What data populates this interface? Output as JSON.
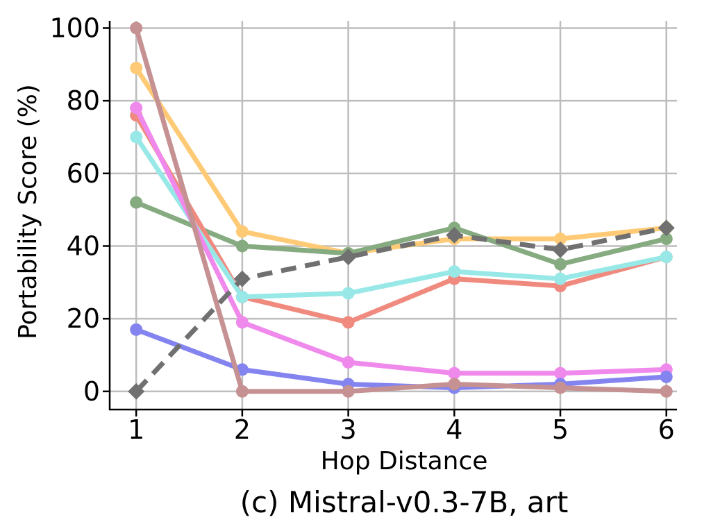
{
  "chart_data": {
    "type": "line",
    "title": "",
    "caption": "(c) Mistral-v0.3-7B, art",
    "xlabel": "Hop Distance",
    "ylabel": "Portability Score (%)",
    "x": [
      1,
      2,
      3,
      4,
      5,
      6
    ],
    "xlim": [
      0.75,
      6.1
    ],
    "ylim": [
      -5,
      102
    ],
    "xticks": [
      "1",
      "2",
      "3",
      "4",
      "5",
      "6"
    ],
    "yticks": [
      0,
      20,
      40,
      60,
      80,
      100
    ],
    "grid": true,
    "series": [
      {
        "name": "series-orange",
        "color": "#ffca75",
        "marker": "circle",
        "dashed": false,
        "values": [
          89,
          44,
          38,
          42,
          42,
          45
        ]
      },
      {
        "name": "series-green",
        "color": "#86ab80",
        "marker": "circle",
        "dashed": false,
        "values": [
          52,
          40,
          38,
          45,
          35,
          42
        ]
      },
      {
        "name": "series-red",
        "color": "#f08a7e",
        "marker": "circle",
        "dashed": false,
        "values": [
          76,
          26,
          19,
          31,
          29,
          37
        ]
      },
      {
        "name": "series-cyan",
        "color": "#97e8e6",
        "marker": "circle",
        "dashed": false,
        "values": [
          70,
          26,
          27,
          33,
          31,
          37
        ]
      },
      {
        "name": "series-pink",
        "color": "#f089ec",
        "marker": "circle",
        "dashed": false,
        "values": [
          78,
          19,
          8,
          5,
          5,
          6
        ]
      },
      {
        "name": "series-blue",
        "color": "#8484f0",
        "marker": "circle",
        "dashed": false,
        "values": [
          17,
          6,
          2,
          1,
          2,
          4
        ]
      },
      {
        "name": "series-brown",
        "color": "#c59193",
        "marker": "circle",
        "dashed": false,
        "values": [
          100,
          0,
          0,
          2,
          1,
          0
        ]
      },
      {
        "name": "series-gray-dashed",
        "color": "#707070",
        "marker": "diamond",
        "dashed": true,
        "values": [
          0,
          31,
          37,
          43,
          39,
          45
        ]
      }
    ]
  }
}
